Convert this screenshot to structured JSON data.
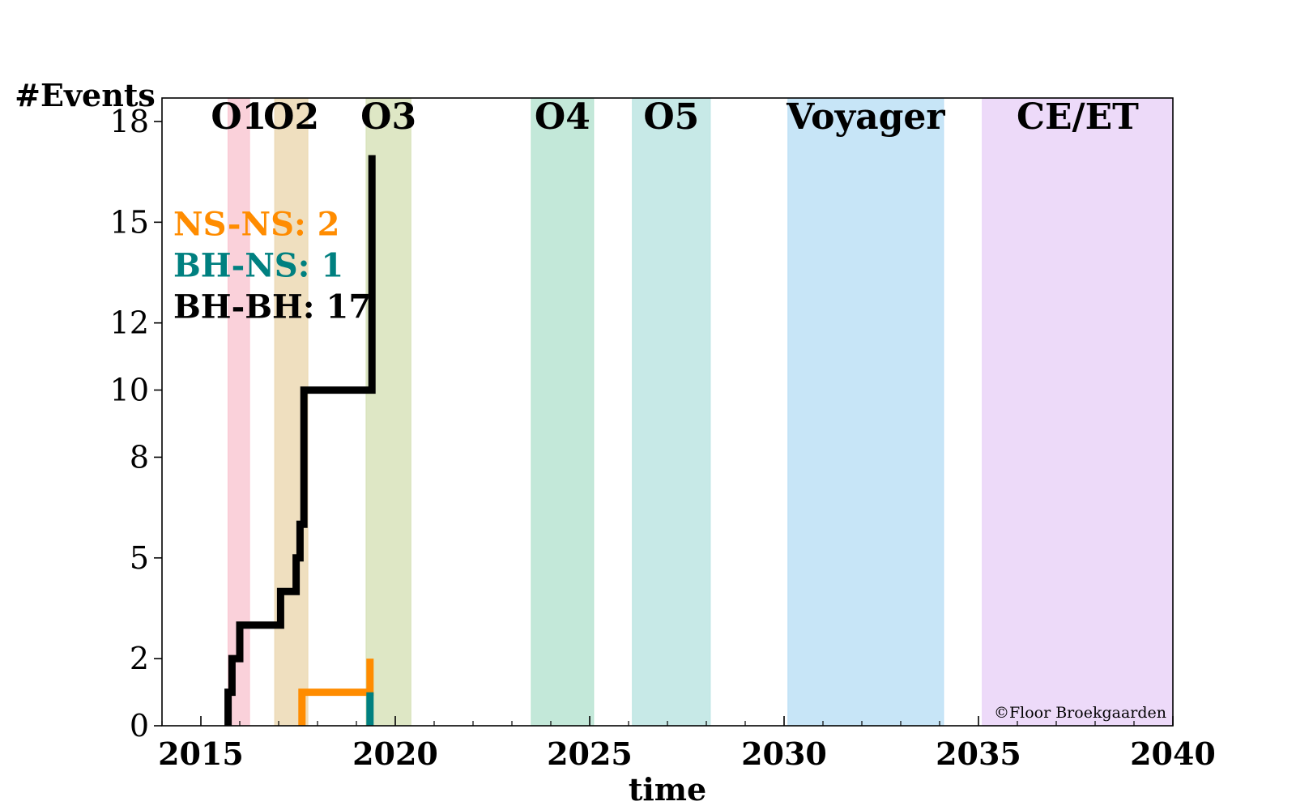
{
  "chart_data": {
    "type": "line",
    "xlabel": "time",
    "ylabel": "#Events",
    "xlim": [
      2014,
      2040
    ],
    "ylim": [
      0,
      18.7
    ],
    "x_ticks": [
      2015,
      2020,
      2025,
      2030,
      2035,
      2040
    ],
    "x_tick_labels": [
      "2015",
      "2020",
      "2025",
      "2030",
      "2035",
      "2040"
    ],
    "y_ticks": [
      0,
      2,
      5,
      8,
      10,
      12,
      15,
      18
    ],
    "y_tick_labels": [
      "0",
      "2",
      "5",
      "8",
      "10",
      "12",
      "15",
      "18"
    ],
    "bands": [
      {
        "label": "O1",
        "start": 2015.7,
        "end": 2016.25,
        "color": "#f9c9d4"
      },
      {
        "label": "O2",
        "start": 2016.9,
        "end": 2017.75,
        "color": "#ecd9b4"
      },
      {
        "label": "O3",
        "start": 2019.25,
        "end": 2020.4,
        "color": "#d8e3bb"
      },
      {
        "label": "O4",
        "start": 2023.5,
        "end": 2025.1,
        "color": "#b9e4d2"
      },
      {
        "label": "O5",
        "start": 2026.1,
        "end": 2028.1,
        "color": "#bde5e3"
      },
      {
        "label": "Voyager",
        "start": 2030.1,
        "end": 2034.1,
        "color": "#bde0f6"
      },
      {
        "label": "CE/ET",
        "start": 2035.1,
        "end": 2040.0,
        "color": "#ead3f8"
      }
    ],
    "series": [
      {
        "name": "NS-NS",
        "color": "#ff8c00",
        "x": [
          2017.6,
          2017.6,
          2019.35,
          2019.35
        ],
        "y": [
          0,
          1,
          1,
          2
        ]
      },
      {
        "name": "BH-NS",
        "color": "#008080",
        "x": [
          2019.35,
          2019.35
        ],
        "y": [
          0,
          1
        ]
      },
      {
        "name": "BH-BH",
        "color": "#000000",
        "x": [
          2015.7,
          2015.7,
          2015.8,
          2015.8,
          2016.0,
          2016.0,
          2017.05,
          2017.05,
          2017.45,
          2017.45,
          2017.55,
          2017.55,
          2017.65,
          2017.65,
          2019.4,
          2019.4
        ],
        "y": [
          0,
          1,
          1,
          2,
          2,
          3,
          3,
          4,
          4,
          5,
          5,
          6,
          6,
          10,
          10,
          17
        ]
      }
    ],
    "legend": [
      {
        "text": "NS-NS: 2",
        "color": "#ff8c00"
      },
      {
        "text": "BH-NS: 1",
        "color": "#008080"
      },
      {
        "text": "BH-BH: 17",
        "color": "#000000"
      }
    ],
    "legend_placement": "upper-left",
    "grid": false,
    "credit": "©Floor Broekgaarden"
  }
}
